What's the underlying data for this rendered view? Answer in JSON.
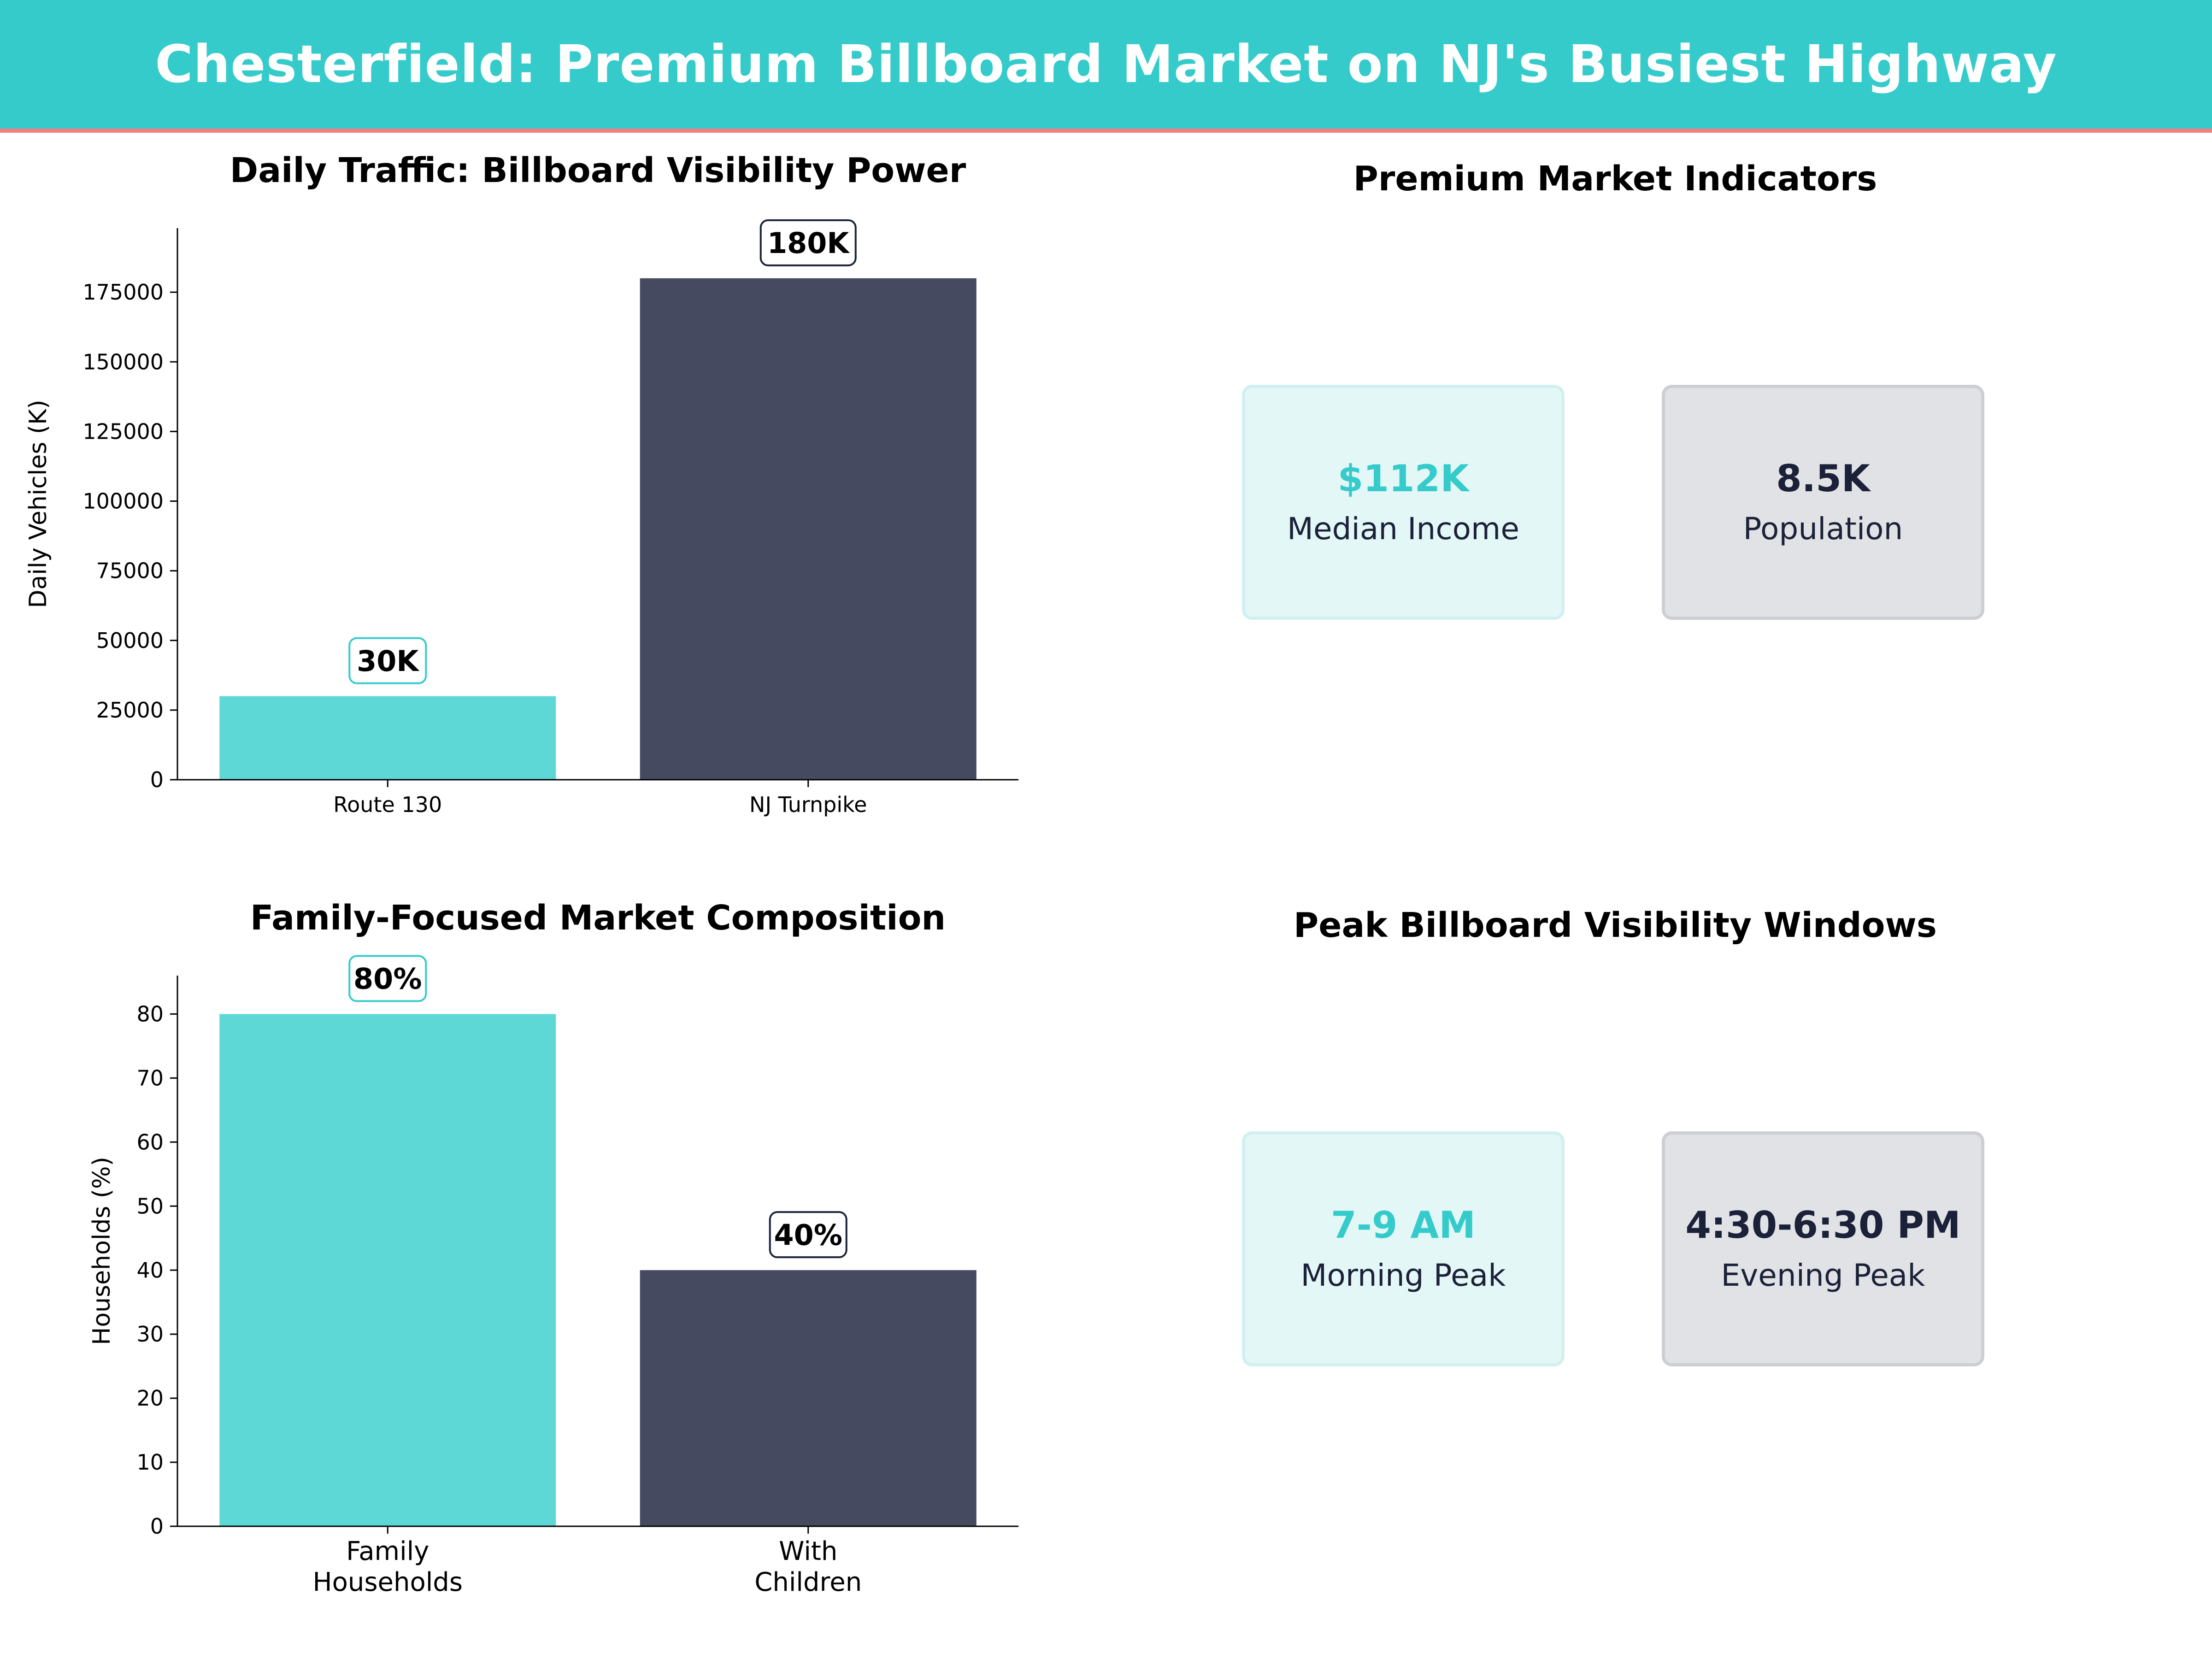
{
  "header": {
    "title": "Chesterfield: Premium Billboard Market on NJ's Busiest Highway"
  },
  "colors": {
    "accent": "#36CBCB",
    "bar_teal": "#5ED8D6",
    "bar_dark": "#464A60",
    "navy": "#1B2138",
    "stripe": "#F08080"
  },
  "chart_data": [
    {
      "type": "bar",
      "title": "Daily Traffic: Billboard Visibility Power",
      "ylabel": "Daily Vehicles (K)",
      "categories": [
        "Route 130",
        "NJ Turnpike"
      ],
      "values": [
        30000,
        180000
      ],
      "data_labels": [
        "30K",
        "180K"
      ],
      "ylim": [
        0,
        198000
      ],
      "yticks": [
        0,
        25000,
        50000,
        75000,
        100000,
        125000,
        150000,
        175000
      ]
    },
    {
      "type": "bar",
      "title": "Family-Focused Market Composition",
      "ylabel": "Households (%)",
      "categories": [
        [
          "Family",
          "Households"
        ],
        [
          "With",
          "Children"
        ]
      ],
      "values": [
        80,
        40
      ],
      "data_labels": [
        "80%",
        "40%"
      ],
      "ylim": [
        0,
        86
      ],
      "yticks": [
        0,
        10,
        20,
        30,
        40,
        50,
        60,
        70,
        80
      ]
    }
  ],
  "indicators": {
    "title": "Premium Market Indicators",
    "cards": [
      {
        "value": "$112K",
        "label": "Median Income"
      },
      {
        "value": "8.5K",
        "label": "Population"
      }
    ]
  },
  "windows": {
    "title": "Peak Billboard Visibility Windows",
    "cards": [
      {
        "value": "7-9 AM",
        "label": "Morning Peak"
      },
      {
        "value": "4:30-6:30 PM",
        "label": "Evening Peak"
      }
    ]
  }
}
